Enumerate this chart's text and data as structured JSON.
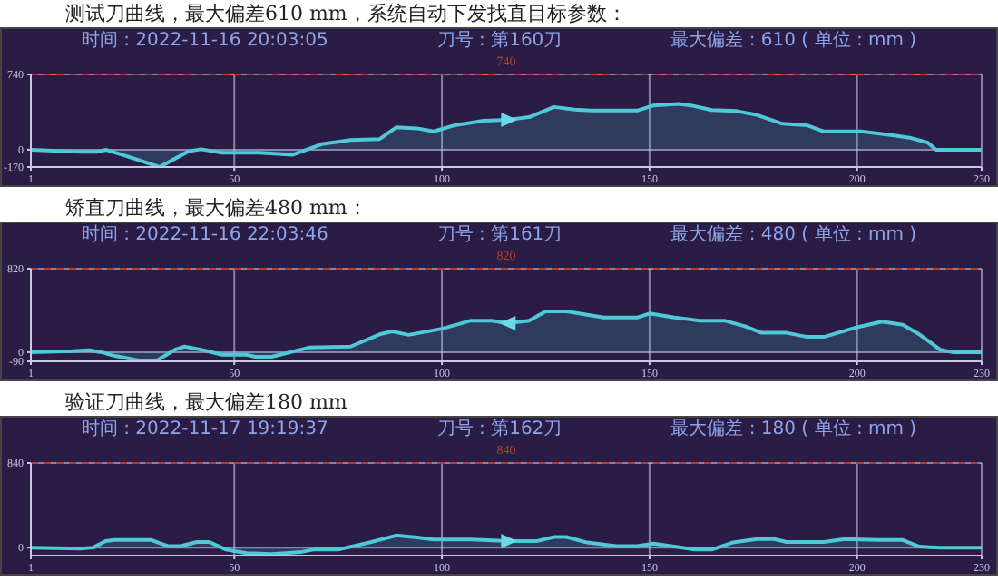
{
  "chart_data": [
    {
      "type": "area",
      "title": "测试刀曲线，最大偏差610 mm，系统自动下发找直目标参数：",
      "annotations": [
        "时间 : 2022-11-16 20:03:05",
        "刀号 : 第160刀",
        "最大偏差 : 610 ( 单位 : mm )"
      ],
      "x": [
        1,
        13,
        17,
        19,
        25,
        32,
        39,
        42,
        47,
        50,
        56,
        64,
        71,
        78,
        85,
        89,
        94,
        98,
        103,
        110,
        116,
        121,
        127,
        132,
        136,
        147,
        151,
        157,
        160,
        165,
        171,
        176,
        182,
        188,
        192,
        201,
        209,
        213,
        217,
        219,
        230
      ],
      "values": [
        0,
        -20,
        -20,
        0,
        -75,
        -170,
        -15,
        5,
        -30,
        -30,
        -30,
        -50,
        55,
        95,
        105,
        220,
        210,
        180,
        240,
        285,
        295,
        320,
        420,
        395,
        385,
        385,
        435,
        450,
        435,
        390,
        380,
        340,
        255,
        240,
        180,
        180,
        140,
        115,
        70,
        0,
        0
      ],
      "color": "#4fc8d8",
      "xlim": [
        1,
        230
      ],
      "xticks": [
        1,
        50,
        100,
        150,
        200,
        230
      ],
      "ylim": [
        -170,
        740
      ],
      "yticks": [
        -170,
        0,
        740
      ],
      "grid": true,
      "ref_lines": [
        {
          "axis": "y",
          "value": 740,
          "label": "740",
          "color": "#c0392b",
          "line_style": "dashed"
        }
      ]
    },
    {
      "type": "area",
      "title": "矫直刀曲线，最大偏差480 mm：",
      "annotations": [
        "时间 : 2022-11-16 22:03:46",
        "刀号 : 第161刀",
        "最大偏差 : 480 ( 单位 : mm )"
      ],
      "x": [
        1,
        11,
        15,
        18,
        21,
        25,
        28,
        31,
        36,
        38,
        42,
        47,
        53,
        55,
        59,
        68,
        78,
        85,
        88,
        92,
        100,
        107,
        112,
        116,
        121,
        125,
        130,
        139,
        147,
        150,
        156,
        162,
        168,
        173,
        177,
        183,
        188,
        192,
        200,
        206,
        211,
        215,
        220,
        223,
        230
      ],
      "values": [
        0,
        10,
        20,
        0,
        -35,
        -65,
        -90,
        -90,
        30,
        55,
        25,
        -25,
        -25,
        -45,
        -45,
        45,
        55,
        175,
        205,
        170,
        230,
        310,
        310,
        285,
        310,
        400,
        400,
        340,
        340,
        380,
        340,
        310,
        310,
        255,
        190,
        190,
        150,
        150,
        245,
        300,
        270,
        175,
        25,
        0,
        0
      ],
      "color": "#4fc8d8",
      "xlim": [
        1,
        230
      ],
      "xticks": [
        1,
        50,
        100,
        150,
        200,
        230
      ],
      "ylim": [
        -90,
        820
      ],
      "yticks": [
        -90,
        0,
        820
      ],
      "grid": true,
      "ref_lines": [
        {
          "axis": "y",
          "value": 820,
          "label": "820",
          "color": "#c0392b",
          "line_style": "dashed"
        }
      ]
    },
    {
      "type": "area",
      "title": "验证刀曲线，最大偏差180 mm",
      "annotations": [
        "时间 : 2022-11-17 19:19:37",
        "刀号 : 第162刀",
        "最大偏差 : 180 ( 单位 : mm )"
      ],
      "x": [
        1,
        13,
        16,
        19,
        21,
        30,
        34,
        37,
        41,
        44,
        48,
        53,
        59,
        66,
        69,
        75,
        83,
        89,
        94,
        98,
        107,
        116,
        123,
        127,
        130,
        135,
        142,
        147,
        151,
        156,
        161,
        165,
        170,
        176,
        180,
        183,
        192,
        197,
        205,
        211,
        215,
        220,
        230
      ],
      "values": [
        0,
        -10,
        0,
        65,
        75,
        75,
        15,
        15,
        55,
        55,
        -20,
        -55,
        -65,
        -45,
        -20,
        -20,
        55,
        120,
        100,
        80,
        80,
        65,
        65,
        105,
        105,
        50,
        15,
        15,
        40,
        10,
        -20,
        -20,
        50,
        85,
        85,
        55,
        55,
        85,
        75,
        75,
        10,
        0,
        0
      ],
      "color": "#4fc8d8",
      "xlim": [
        1,
        230
      ],
      "xticks": [
        1,
        50,
        100,
        150,
        200,
        230
      ],
      "ylim": [
        -80,
        840
      ],
      "yticks": [
        0,
        840
      ],
      "grid": true,
      "ref_lines": [
        {
          "axis": "y",
          "value": 840,
          "label": "840",
          "color": "#c0392b",
          "line_style": "dashed"
        }
      ]
    }
  ]
}
